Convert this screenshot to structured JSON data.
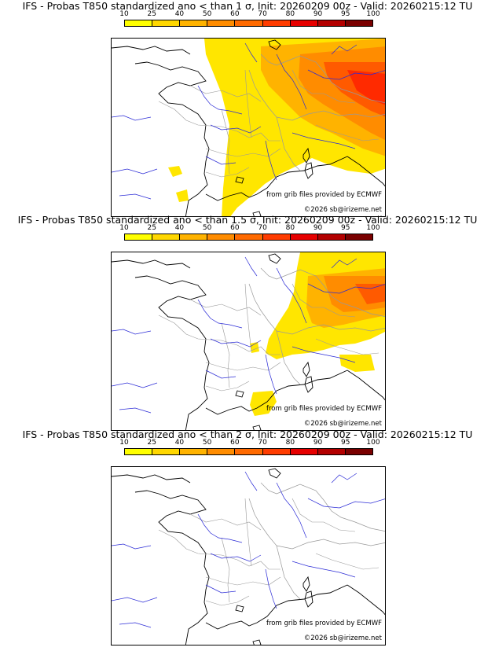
{
  "legend": {
    "ticks": [
      "10",
      "25",
      "40",
      "50",
      "60",
      "70",
      "80",
      "90",
      "95",
      "100"
    ],
    "colors": [
      "#ffff00",
      "#ffd700",
      "#ffb300",
      "#ff8c00",
      "#ff6a00",
      "#ff3c00",
      "#e60000",
      "#b30000",
      "#7a0000"
    ]
  },
  "panels": [
    {
      "title": "IFS - Probas T850  standardized ano < than 1 σ, Init: 20260209 00z - Valid: 20260215:12 TU"
    },
    {
      "title": "IFS - Probas T850  standardized ano < than 1.5 σ, Init: 20260209 00z - Valid: 20260215:12 TU"
    },
    {
      "title": "IFS - Probas T850  standardized ano < than 2 σ, Init: 20260209 00z - Valid: 20260215:12 TU"
    }
  ],
  "credits": {
    "source": "from grib files provided by ECMWF",
    "copyright": "©2026 sb@irizeme.net"
  }
}
